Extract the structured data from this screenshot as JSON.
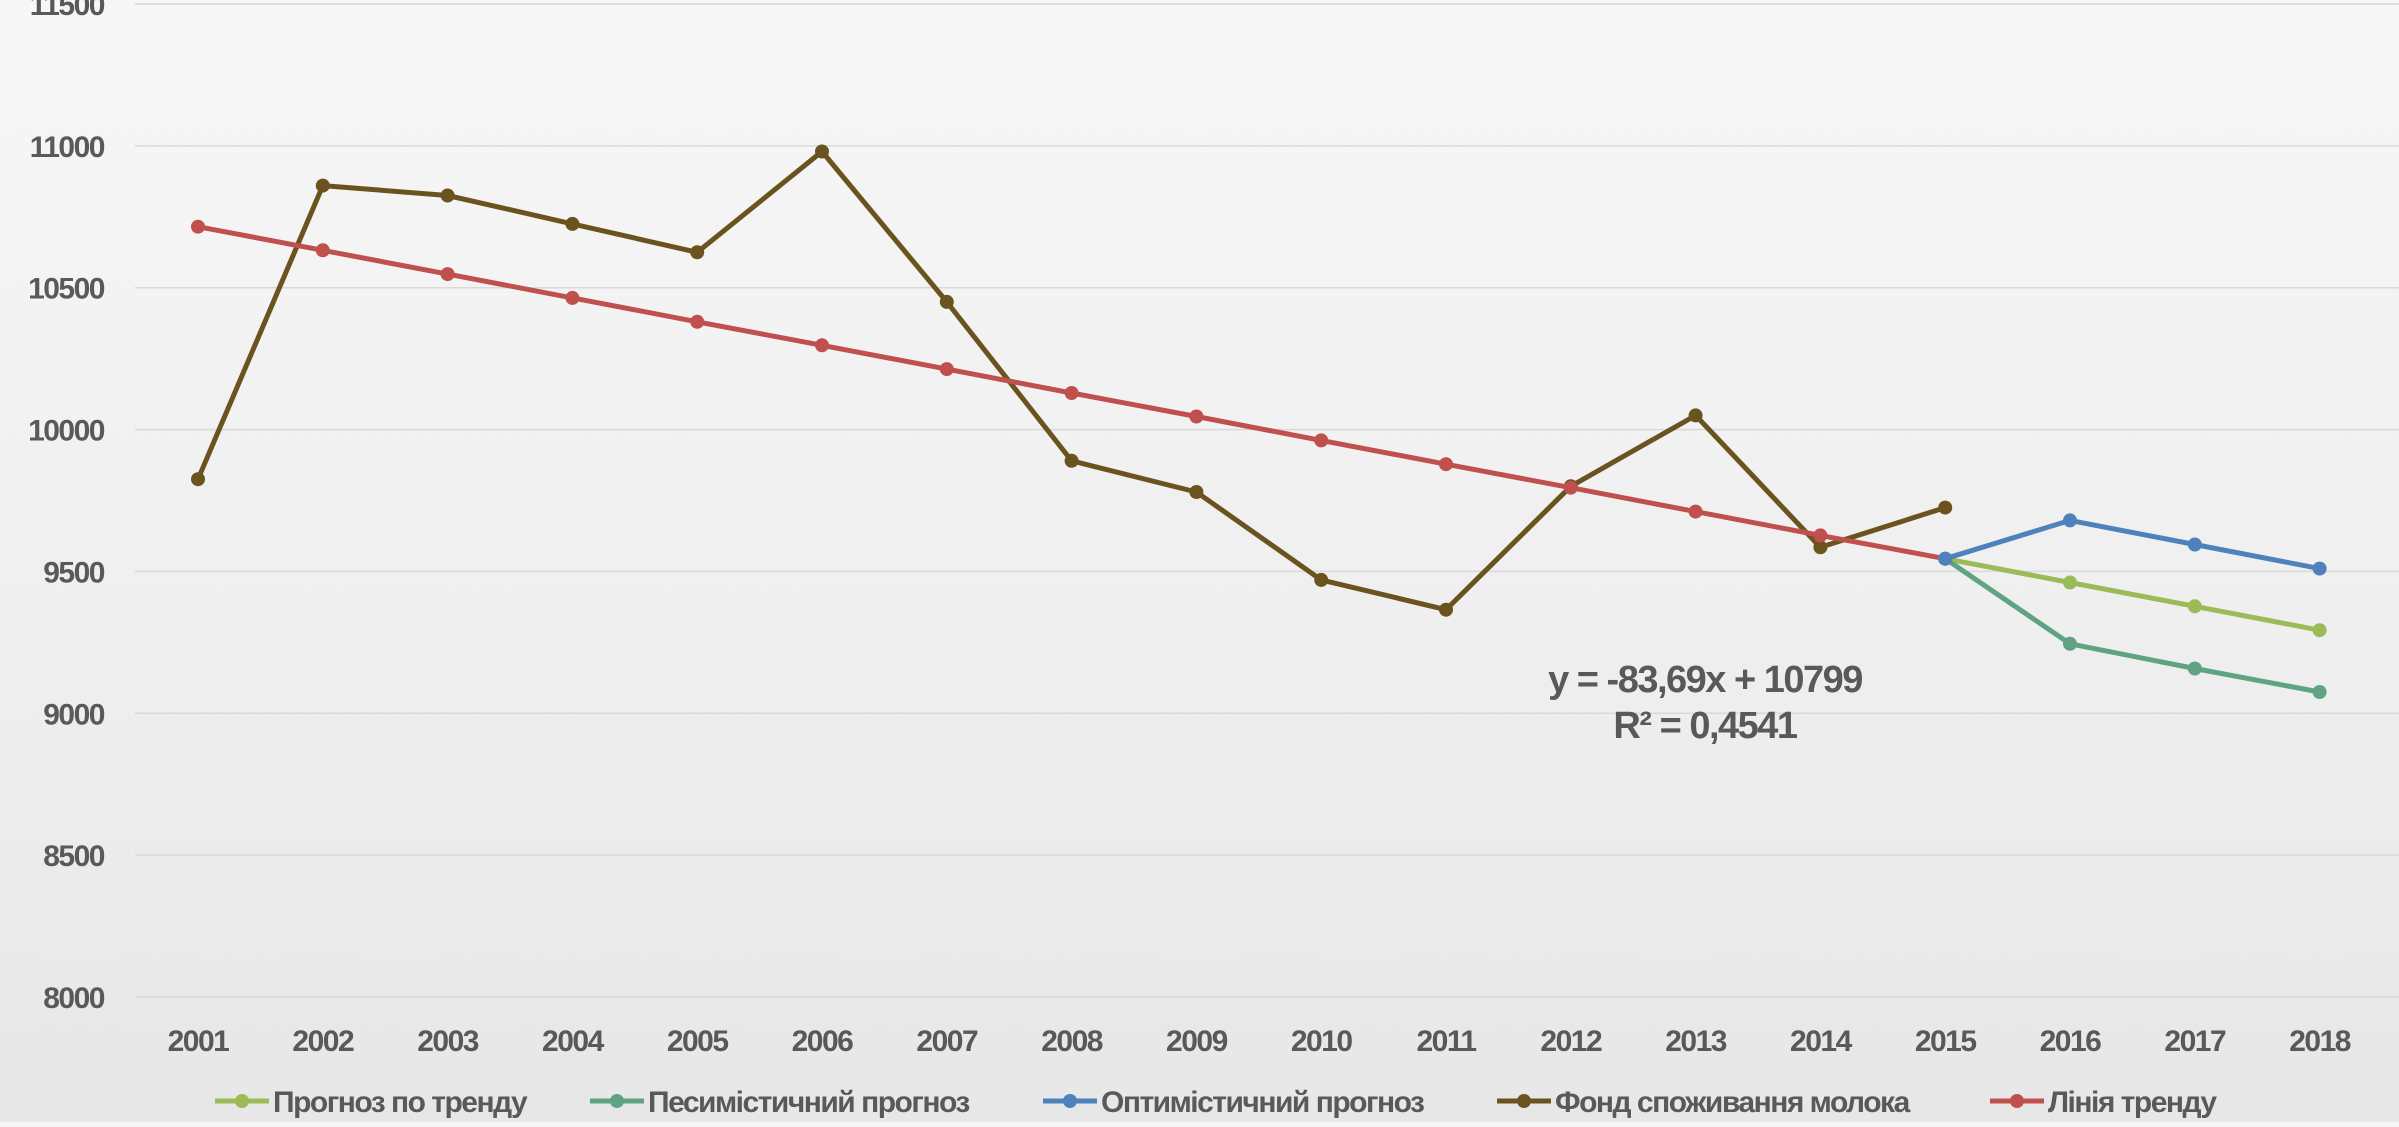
{
  "chart_data": {
    "type": "line",
    "title": "",
    "xlabel": "",
    "ylabel": "",
    "ylim": [
      8000,
      11500
    ],
    "yticks": [
      8000,
      8500,
      9000,
      9500,
      10000,
      10500,
      11000,
      11500
    ],
    "ytick_labels": [
      "8000",
      "8500",
      "9000",
      "9500",
      "10000",
      "10500",
      "11000",
      "11500"
    ],
    "categories": [
      "2001",
      "2002",
      "2003",
      "2004",
      "2005",
      "2006",
      "2007",
      "2008",
      "2009",
      "2010",
      "2011",
      "2012",
      "2013",
      "2014",
      "2015",
      "2016",
      "2017",
      "2018"
    ],
    "grid": true,
    "legend_position": "bottom",
    "series": [
      {
        "name": "Прогноз по тренду",
        "color": "#9bbb59",
        "values": [
          null,
          null,
          null,
          null,
          null,
          null,
          null,
          null,
          null,
          null,
          null,
          null,
          null,
          null,
          9545,
          9461,
          9377,
          9293
        ]
      },
      {
        "name": "Песимістичний прогноз",
        "color": "#5fa382",
        "values": [
          null,
          null,
          null,
          null,
          null,
          null,
          null,
          null,
          null,
          null,
          null,
          null,
          null,
          null,
          9545,
          9245,
          9158,
          9075
        ]
      },
      {
        "name": "Оптимістичний прогноз",
        "color": "#4f81bd",
        "values": [
          null,
          null,
          null,
          null,
          null,
          null,
          null,
          null,
          null,
          null,
          null,
          null,
          null,
          null,
          9545,
          9680,
          9595,
          9510
        ]
      },
      {
        "name": "Фонд споживання молока",
        "color": "#6b5320",
        "values": [
          9825,
          10860,
          10825,
          10725,
          10625,
          10980,
          10450,
          9890,
          9780,
          9470,
          9365,
          9800,
          10050,
          9585,
          9725,
          null,
          null,
          null
        ]
      },
      {
        "name": "Лінія тренду",
        "color": "#c0504d",
        "values": [
          10715,
          10632,
          10548,
          10464,
          10380,
          10297,
          10213,
          10129,
          10046,
          9962,
          9878,
          9795,
          9711,
          9627,
          9545,
          null,
          null,
          null
        ]
      }
    ],
    "annotations": [
      "y = -83,69x + 10799",
      "R² = 0,4541"
    ]
  }
}
